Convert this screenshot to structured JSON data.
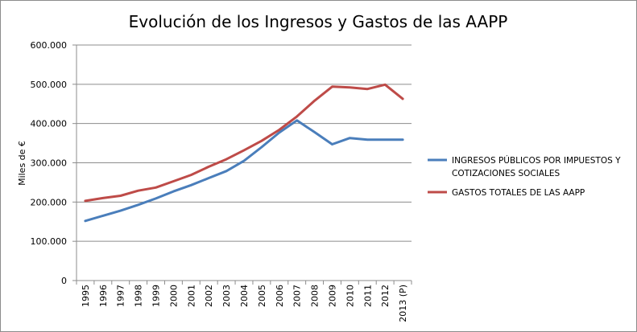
{
  "chart_data": {
    "type": "line",
    "title": "Evolución de los Ingresos y Gastos de las AAPP",
    "xlabel": "",
    "ylabel": "Miles de €",
    "ylim": [
      0,
      600000
    ],
    "y_ticks": [
      "0",
      "100.000",
      "200.000",
      "300.000",
      "400.000",
      "500.000",
      "600.000"
    ],
    "categories": [
      "1995",
      "1996",
      "1997",
      "1998",
      "1999",
      "2000",
      "2001",
      "2002",
      "2003",
      "2004",
      "2005",
      "2006",
      "2007",
      "2008",
      "2009",
      "2010",
      "2011",
      "2012",
      "2013 (P)"
    ],
    "grid": true,
    "legend_position": "right",
    "series": [
      {
        "name_lines": [
          "INGRESOS PÚBLICOS POR IMPUESTOS Y",
          "COTIZACIONES SOCIALES"
        ],
        "color": "#4a7ebb",
        "values": [
          152000,
          165000,
          178000,
          193000,
          209000,
          227000,
          243000,
          261000,
          279000,
          305000,
          340000,
          377000,
          408000,
          378000,
          347000,
          363000,
          359000,
          359000,
          359000
        ]
      },
      {
        "name_lines": [
          "GASTOS TOTALES DE LAS AAPP"
        ],
        "color": "#be4b48",
        "values": [
          203000,
          210000,
          216000,
          229000,
          237000,
          253000,
          269000,
          290000,
          309000,
          332000,
          356000,
          384000,
          418000,
          458000,
          494000,
          492000,
          488000,
          499000,
          463000
        ]
      }
    ]
  }
}
